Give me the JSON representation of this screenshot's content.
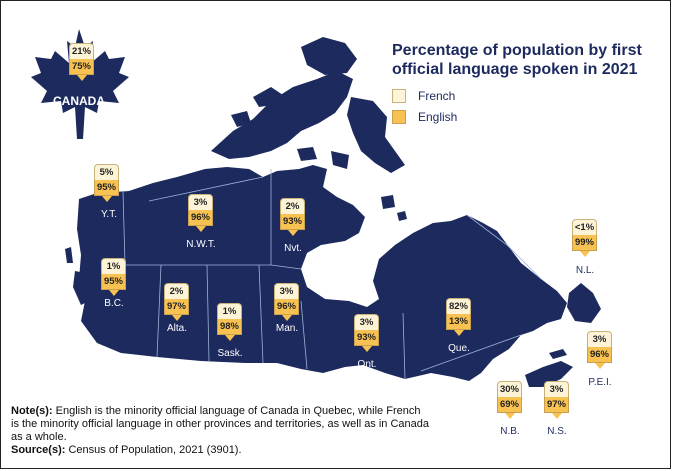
{
  "title": "Percentage of population by first official language spoken in 2021",
  "legend": {
    "french": "French",
    "english": "English",
    "french_color": "#fdf4d7",
    "english_color": "#f8c252"
  },
  "map_color": "#1c2a5e",
  "canada": {
    "label": "CANADA",
    "french": "21%",
    "english": "75%"
  },
  "regions": [
    {
      "key": "yt",
      "label": "Y.T.",
      "french": "5%",
      "english": "95%",
      "label_tone": "light"
    },
    {
      "key": "nwt",
      "label": "N.W.T.",
      "french": "3%",
      "english": "96%",
      "label_tone": "light"
    },
    {
      "key": "nvt",
      "label": "Nvt.",
      "french": "2%",
      "english": "93%",
      "label_tone": "light"
    },
    {
      "key": "nl",
      "label": "N.L.",
      "french": "<1%",
      "english": "99%",
      "label_tone": "dark"
    },
    {
      "key": "bc",
      "label": "B.C.",
      "french": "1%",
      "english": "95%",
      "label_tone": "light"
    },
    {
      "key": "alta",
      "label": "Alta.",
      "french": "2%",
      "english": "97%",
      "label_tone": "light"
    },
    {
      "key": "sask",
      "label": "Sask.",
      "french": "1%",
      "english": "98%",
      "label_tone": "light"
    },
    {
      "key": "man",
      "label": "Man.",
      "french": "3%",
      "english": "96%",
      "label_tone": "light"
    },
    {
      "key": "ont",
      "label": "Ont.",
      "french": "3%",
      "english": "93%",
      "label_tone": "light"
    },
    {
      "key": "que",
      "label": "Que.",
      "french": "82%",
      "english": "13%",
      "label_tone": "light"
    },
    {
      "key": "pei",
      "label": "P.E.I.",
      "french": "3%",
      "english": "96%",
      "label_tone": "dark"
    },
    {
      "key": "nb",
      "label": "N.B.",
      "french": "30%",
      "english": "69%",
      "label_tone": "dark"
    },
    {
      "key": "ns",
      "label": "N.S.",
      "french": "3%",
      "english": "97%",
      "label_tone": "dark"
    }
  ],
  "notes": {
    "note_label": "Note(s):",
    "note_text": "English is the minority official language of Canada in Quebec, while French is the minority official language in other provinces and territories, as well as in Canada as a whole.",
    "source_label": "Source(s):",
    "source_text": "Census of Population, 2021 (3901)."
  }
}
